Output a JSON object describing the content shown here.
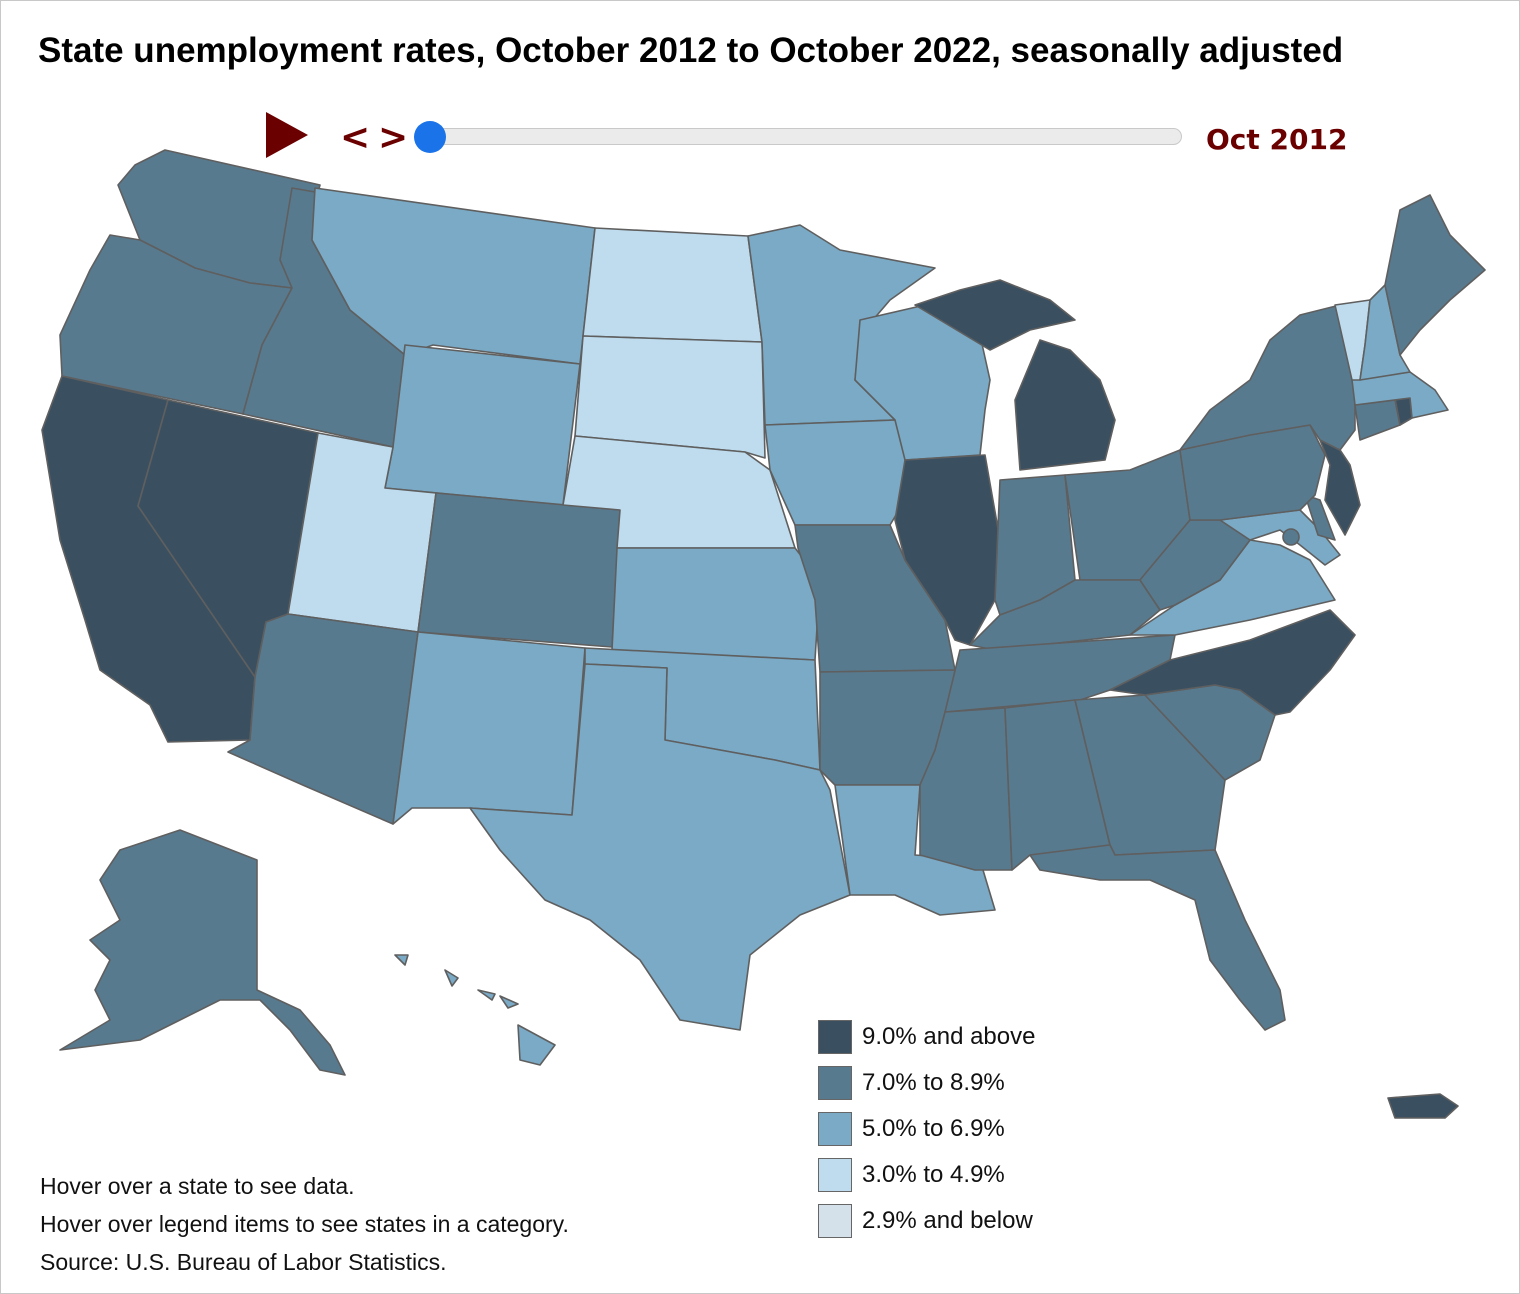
{
  "title": "State unemployment rates, October 2012 to October 2022, seasonally adjusted",
  "controls": {
    "play_icon": "play-triangle-icon",
    "prev_label": "<",
    "next_label": ">",
    "slider_value": 0,
    "current_date": "Oct 2012"
  },
  "colors": {
    "accent": "#6b0000",
    "slider_thumb": "#1a73e8",
    "border": "#5f5f5f"
  },
  "legend": [
    {
      "label": "9.0% and above",
      "color": "#3a5061"
    },
    {
      "label": "7.0% to 8.9%",
      "color": "#587a8f"
    },
    {
      "label": "5.0% to 6.9%",
      "color": "#7aaac6"
    },
    {
      "label": "3.0% to 4.9%",
      "color": "#bedcee"
    },
    {
      "label": "2.9% and below",
      "color": "#d4e0ea"
    }
  ],
  "notes": {
    "hover_state": "Hover over a state to see data.",
    "hover_legend": "Hover over legend items to see states in a category.",
    "source": "Source: U.S. Bureau of Labor Statistics."
  },
  "state_categories": {
    "CA": 0,
    "NV": 0,
    "IL": 0,
    "MI": 0,
    "NC": 0,
    "NJ": 0,
    "RI": 0,
    "PR": 0,
    "WA": 1,
    "OR": 1,
    "ID": 1,
    "AZ": 1,
    "CO": 1,
    "MO": 1,
    "AR": 1,
    "TN": 1,
    "MS": 1,
    "AL": 1,
    "GA": 1,
    "SC": 1,
    "FL": 1,
    "KY": 1,
    "IN": 1,
    "OH": 1,
    "WV": 1,
    "PA": 1,
    "NY": 1,
    "ME": 1,
    "CT": 1,
    "DE": 1,
    "AK": 1,
    "DC": 1,
    "MT": 2,
    "WY": 2,
    "NM": 2,
    "TX": 2,
    "KS": 2,
    "OK": 2,
    "MN": 2,
    "WI": 2,
    "IA": 2,
    "LA": 2,
    "VA": 2,
    "MD": 2,
    "NH": 2,
    "MA": 2,
    "HI": 2,
    "ND": 3,
    "SD": 3,
    "NE": 3,
    "UT": 3,
    "VT": 3
  }
}
